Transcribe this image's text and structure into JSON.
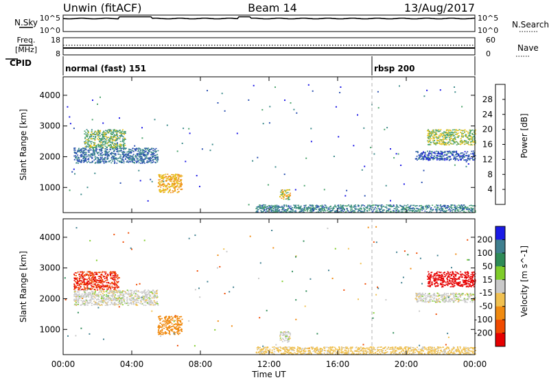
{
  "header": {
    "station": "Unwin (fitACF)",
    "beam": "Beam 14",
    "date": "13/Aug/2017"
  },
  "strips": {
    "nsky_label": "N.Sky",
    "nsky_ticks": [
      "10^5",
      "10^0"
    ],
    "nsearch_label": "N.Search",
    "freq_label": "Freq.",
    "freq_unit": "[MHz]",
    "freq_ticks": [
      "18",
      "8"
    ],
    "nave_label": "Nave",
    "nave_ticks": [
      "60",
      "0"
    ],
    "cpid_label": "CPID",
    "cpid_modes": [
      {
        "name": "normal (fast) 151",
        "start_hour": 0
      },
      {
        "name": "rbsp 200",
        "start_hour": 18
      }
    ]
  },
  "chart_data": [
    {
      "type": "heatmap",
      "title": "Power",
      "xlabel": "Time UT",
      "ylabel": "Slant Range [km]",
      "colorbar_label": "Power [dB]",
      "xlim": [
        0,
        24
      ],
      "ylim": [
        180,
        4600
      ],
      "x_ticks": [
        "00:00",
        "04:00",
        "08:00",
        "12:00",
        "16:00",
        "20:00",
        "00:00"
      ],
      "y_ticks": [
        1000,
        2000,
        3000,
        4000
      ],
      "colorbar_ticks": [
        4,
        8,
        12,
        16,
        20,
        24,
        28
      ],
      "colorbar_range": [
        0,
        32
      ],
      "colorbar_colors": [
        "#1a16e6",
        "#2a4fb0",
        "#3c8a8a",
        "#4aa36b",
        "#e5c21a",
        "#f09018",
        "#ea4b10",
        "#e60000"
      ],
      "echo_regions": [
        {
          "t0": 0.6,
          "t1": 5.5,
          "r0": 1800,
          "r1": 2300,
          "power_db": 8
        },
        {
          "t0": 1.2,
          "t1": 3.6,
          "r0": 2300,
          "r1": 2900,
          "power_db": 14
        },
        {
          "t0": 5.5,
          "t1": 6.9,
          "r0": 850,
          "r1": 1450,
          "power_db": 20
        },
        {
          "t0": 12.6,
          "t1": 13.2,
          "r0": 600,
          "r1": 950,
          "power_db": 18
        },
        {
          "t0": 11.2,
          "t1": 24,
          "r0": 200,
          "r1": 450,
          "power_db": 10
        },
        {
          "t0": 20.5,
          "t1": 24,
          "r0": 1900,
          "r1": 2200,
          "power_db": 6
        },
        {
          "t0": 21.2,
          "t1": 24,
          "r0": 2400,
          "r1": 2900,
          "power_db": 16
        }
      ]
    },
    {
      "type": "heatmap",
      "title": "Velocity",
      "xlabel": "Time UT",
      "ylabel": "Slant Range [km]",
      "colorbar_label": "Velocity [m s^-1]",
      "xlim": [
        0,
        24
      ],
      "ylim": [
        180,
        4600
      ],
      "x_ticks": [
        "00:00",
        "04:00",
        "08:00",
        "12:00",
        "16:00",
        "20:00",
        "00:00"
      ],
      "y_ticks": [
        1000,
        2000,
        3000,
        4000
      ],
      "colorbar_ticks": [
        200,
        100,
        50,
        15,
        -15,
        -50,
        -100,
        -200
      ],
      "colorbar_colors": [
        "#1a1ae6",
        "#3f7f8f",
        "#2e8b57",
        "#7fcc2a",
        "#c9c9c9",
        "#f0c050",
        "#f08a10",
        "#f04a00",
        "#e60000"
      ],
      "echo_regions": [
        {
          "t0": 0.6,
          "t1": 3.2,
          "r0": 2300,
          "r1": 2900,
          "velocity": -200
        },
        {
          "t0": 0.6,
          "t1": 5.5,
          "r0": 1800,
          "r1": 2300,
          "velocity": 0
        },
        {
          "t0": 5.5,
          "t1": 6.9,
          "r0": 850,
          "r1": 1450,
          "velocity": -80
        },
        {
          "t0": 12.6,
          "t1": 13.2,
          "r0": 600,
          "r1": 950,
          "velocity": 0
        },
        {
          "t0": 11.2,
          "t1": 24,
          "r0": 200,
          "r1": 450,
          "velocity": -30
        },
        {
          "t0": 20.5,
          "t1": 24,
          "r0": 1900,
          "r1": 2200,
          "velocity": 0
        },
        {
          "t0": 21.2,
          "t1": 24,
          "r0": 2400,
          "r1": 2900,
          "velocity": -220
        }
      ]
    }
  ]
}
